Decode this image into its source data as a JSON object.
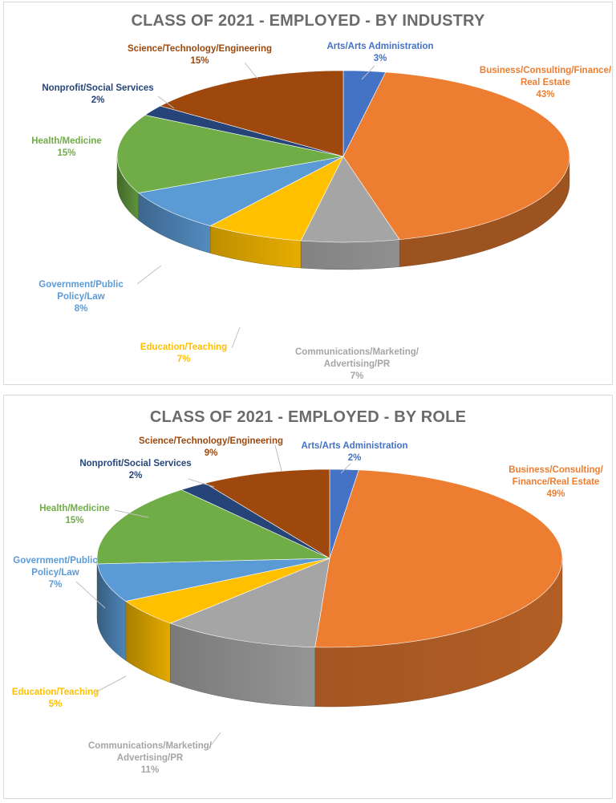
{
  "colors": {
    "arts": "#4472c4",
    "business": "#ed7d31",
    "communications": "#a5a5a5",
    "education": "#ffc000",
    "government": "#5b9bd5",
    "health": "#70ad47",
    "nonprofit": "#264478",
    "science": "#9e480e"
  },
  "chart_data": [
    {
      "type": "pie",
      "title": "CLASS OF 2021 - EMPLOYED - BY INDUSTRY",
      "categories": [
        "Arts/Arts Administration",
        "Business/Consulting/Finance/Real Estate",
        "Communications/Marketing/Advertising/PR",
        "Education/Teaching",
        "Government/Public Policy/Law",
        "Health/Medicine",
        "Nonprofit/Social Services",
        "Science/Technology/Engineering"
      ],
      "values": [
        3,
        43,
        7,
        7,
        8,
        15,
        2,
        15
      ],
      "slices": [
        {
          "key": "arts",
          "lines": [
            "Arts/Arts Administration"
          ],
          "pct": "3%"
        },
        {
          "key": "business",
          "lines": [
            "Business/Consulting/Finance/",
            "Real Estate"
          ],
          "pct": "43%"
        },
        {
          "key": "communications",
          "lines": [
            "Communications/Marketing/",
            "Advertising/PR"
          ],
          "pct": "7%"
        },
        {
          "key": "education",
          "lines": [
            "Education/Teaching"
          ],
          "pct": "7%"
        },
        {
          "key": "government",
          "lines": [
            "Government/Public",
            "Policy/Law"
          ],
          "pct": "8%"
        },
        {
          "key": "health",
          "lines": [
            "Health/Medicine"
          ],
          "pct": "15%"
        },
        {
          "key": "nonprofit",
          "lines": [
            "Nonprofit/Social Services"
          ],
          "pct": "2%"
        },
        {
          "key": "science",
          "lines": [
            "Science/Technology/Engineering"
          ],
          "pct": "15%"
        }
      ]
    },
    {
      "type": "pie",
      "title": "CLASS OF 2021 - EMPLOYED - BY ROLE",
      "categories": [
        "Arts/Arts Administration",
        "Business/Consulting/Finance/Real Estate",
        "Communications/Marketing/Advertising/PR",
        "Education/Teaching",
        "Government/Public Policy/Law",
        "Health/Medicine",
        "Nonprofit/Social Services",
        "Science/Technology/Engineering"
      ],
      "values": [
        2,
        49,
        11,
        5,
        7,
        15,
        2,
        9
      ],
      "slices": [
        {
          "key": "arts",
          "lines": [
            "Arts/Arts Administration"
          ],
          "pct": "2%"
        },
        {
          "key": "business",
          "lines": [
            "Business/Consulting/",
            "Finance/Real Estate"
          ],
          "pct": "49%"
        },
        {
          "key": "communications",
          "lines": [
            "Communications/Marketing/",
            "Advertising/PR"
          ],
          "pct": "11%"
        },
        {
          "key": "education",
          "lines": [
            "Education/Teaching"
          ],
          "pct": "5%"
        },
        {
          "key": "government",
          "lines": [
            "Government/Public",
            "Policy/Law"
          ],
          "pct": "7%"
        },
        {
          "key": "health",
          "lines": [
            "Health/Medicine"
          ],
          "pct": "15%"
        },
        {
          "key": "nonprofit",
          "lines": [
            "Nonprofit/Social Services"
          ],
          "pct": "2%"
        },
        {
          "key": "science",
          "lines": [
            "Science/Technology/Engineering"
          ],
          "pct": "9%"
        }
      ]
    }
  ]
}
